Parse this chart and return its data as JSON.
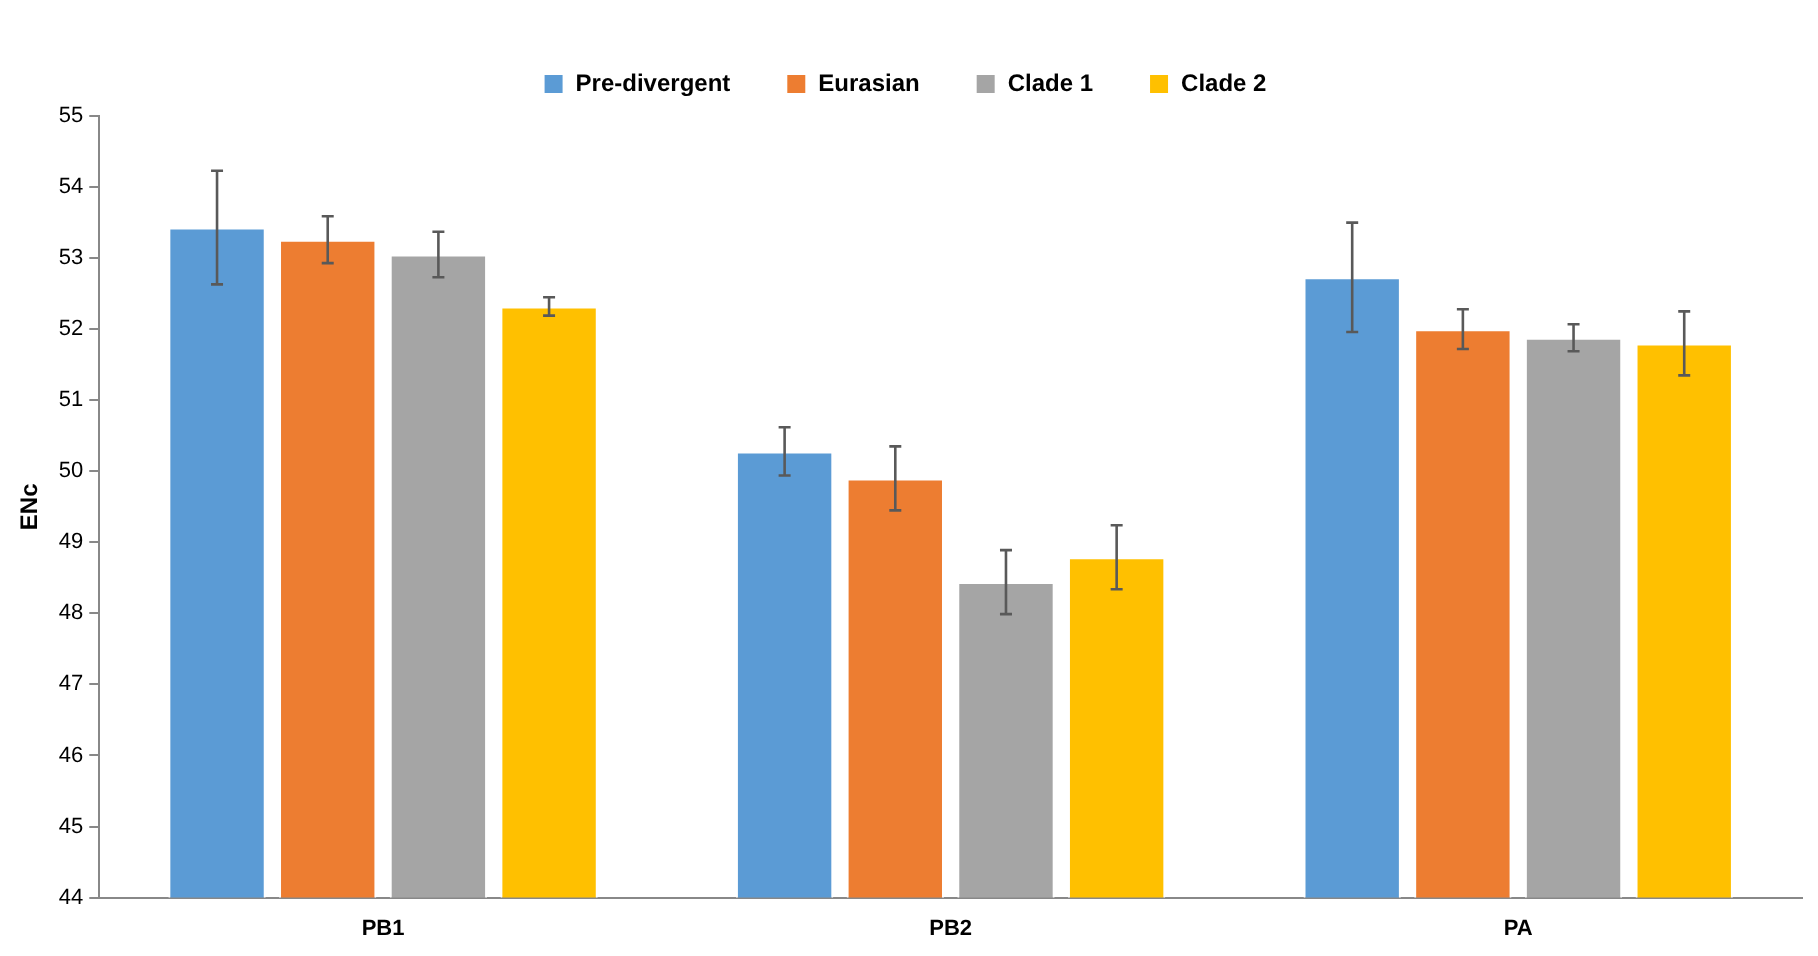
{
  "chart_data": {
    "type": "bar",
    "ylabel": "ENc",
    "categories": [
      "PB1",
      "PB2",
      "PA"
    ],
    "series": [
      {
        "name": "Pre-divergent",
        "color": "#5b9bd5",
        "values": [
          53.43,
          50.28,
          52.73
        ],
        "errors": [
          0.8,
          0.34,
          0.77
        ]
      },
      {
        "name": "Eurasian",
        "color": "#ed7d31",
        "values": [
          53.26,
          49.9,
          52.0
        ],
        "errors": [
          0.33,
          0.45,
          0.28
        ]
      },
      {
        "name": "Clade 1",
        "color": "#a5a5a5",
        "values": [
          53.05,
          48.44,
          51.88
        ],
        "errors": [
          0.32,
          0.45,
          0.19
        ]
      },
      {
        "name": "Clade 2",
        "color": "#ffc000",
        "values": [
          52.32,
          48.79,
          51.8
        ],
        "errors": [
          0.13,
          0.45,
          0.45
        ]
      }
    ],
    "ylim": [
      44,
      55
    ],
    "yticks": [
      44,
      45,
      46,
      47,
      48,
      49,
      50,
      51,
      52,
      53,
      54,
      55
    ],
    "grid": false,
    "legend": "top"
  }
}
